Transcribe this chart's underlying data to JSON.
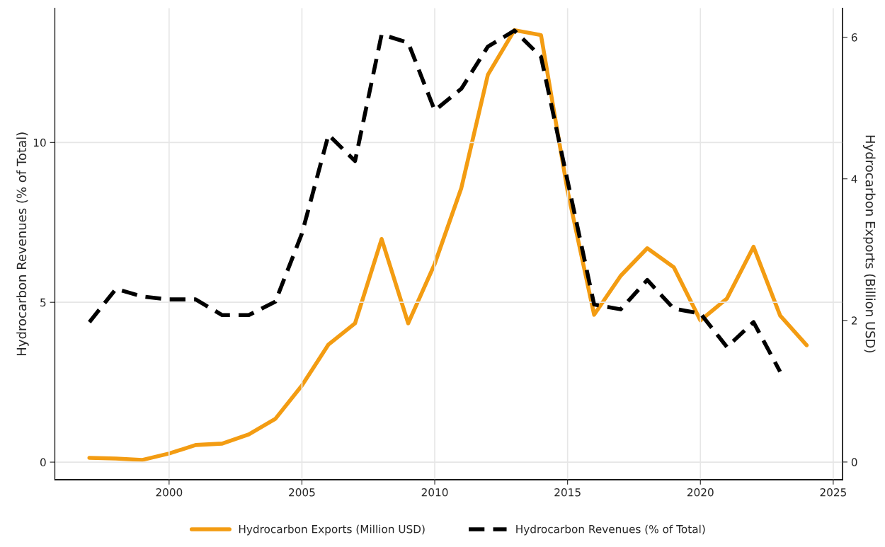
{
  "chart_data": {
    "type": "line",
    "ylabel": "Hydrocarbon Revenues (% of Total)",
    "y2label": "Hydrocarbon Exports (Billion USD)",
    "series": [
      {
        "name": "Hydrocarbon Exports (Million USD)",
        "color": "#f39c12",
        "line_style": "solid",
        "axis": "y2",
        "x": [
          1997,
          1998,
          1999,
          2000,
          2001,
          2002,
          2003,
          2004,
          2005,
          2006,
          2007,
          2008,
          2009,
          2010,
          2011,
          2012,
          2013,
          2014,
          2015,
          2016,
          2017,
          2018,
          2019,
          2020,
          2021,
          2022,
          2023,
          2024
        ],
        "values": [
          0.06,
          0.05,
          0.03,
          0.12,
          0.24,
          0.26,
          0.39,
          0.61,
          1.08,
          1.66,
          1.96,
          3.15,
          1.96,
          2.8,
          3.87,
          5.47,
          6.1,
          6.03,
          3.83,
          2.08,
          2.63,
          3.02,
          2.75,
          2.0,
          2.31,
          3.04,
          2.07,
          1.65
        ]
      },
      {
        "name": "Hydrocarbon Revenues (% of Total)",
        "color": "#000000",
        "line_style": "dashed",
        "axis": "y",
        "x": [
          1997,
          1998,
          1999,
          2000,
          2001,
          2002,
          2003,
          2004,
          2005,
          2006,
          2007,
          2008,
          2009,
          2010,
          2011,
          2012,
          2013,
          2014,
          2015,
          2016,
          2017,
          2018,
          2019,
          2020,
          2021,
          2022,
          2023
        ],
        "values": [
          4.38,
          5.42,
          5.18,
          5.09,
          5.09,
          4.6,
          4.6,
          5.02,
          7.15,
          10.24,
          9.42,
          13.38,
          13.12,
          11.0,
          11.68,
          13.0,
          13.5,
          12.68,
          8.8,
          4.93,
          4.78,
          5.7,
          4.8,
          4.65,
          3.6,
          4.38,
          2.83
        ]
      }
    ],
    "xlim": [
      1995.7,
      2025.35
    ],
    "xticks": [
      2000,
      2005,
      2010,
      2015,
      2020,
      2025
    ],
    "ylim": [
      -0.55,
      14.2
    ],
    "yticks": [
      0,
      5,
      10
    ],
    "y2lim": [
      -0.25,
      6.41
    ],
    "y2ticks": [
      0,
      2,
      4,
      6
    ],
    "grid": true,
    "legend": "bottom"
  }
}
